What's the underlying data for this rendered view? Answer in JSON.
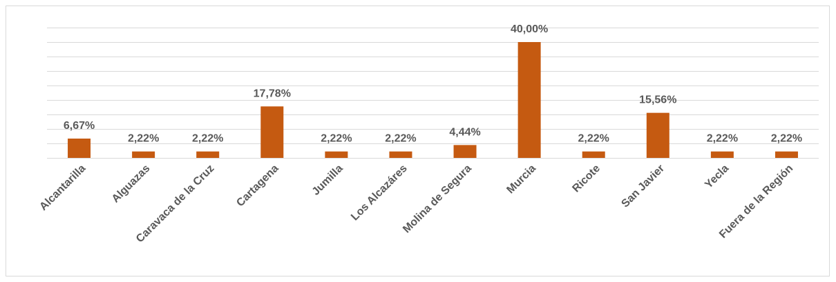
{
  "chart_data": {
    "type": "bar",
    "categories": [
      "Alcantarilla",
      "Alguazas",
      "Caravaca de la Cruz",
      "Cartagena",
      "Jumilla",
      "Los Alcazáres",
      "Molina de Segura",
      "Murcia",
      "Ricote",
      "San Javier",
      "Yecla",
      "Fuera de la Región"
    ],
    "values": [
      6.67,
      2.22,
      2.22,
      17.78,
      2.22,
      2.22,
      4.44,
      40.0,
      2.22,
      15.56,
      2.22,
      2.22
    ],
    "value_labels": [
      "6,67%",
      "2,22%",
      "2,22%",
      "17,78%",
      "2,22%",
      "2,22%",
      "4,44%",
      "40,00%",
      "2,22%",
      "15,56%",
      "2,22%",
      "2,22%"
    ],
    "color": "#c55a11",
    "ylim": [
      0,
      45
    ],
    "yticks": [
      0,
      5,
      10,
      15,
      20,
      25,
      30,
      35,
      40,
      45
    ],
    "grid": true
  }
}
